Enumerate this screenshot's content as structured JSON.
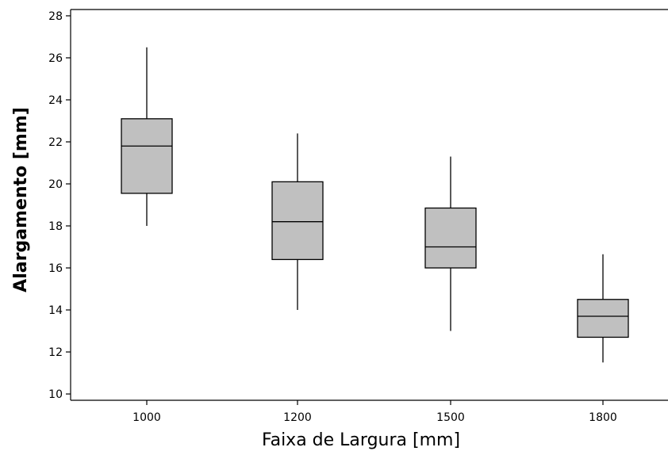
{
  "chart_data": {
    "type": "boxplot",
    "title": "",
    "xlabel": "Faixa de Largura [mm]",
    "ylabel": "Alargamento [mm]",
    "categories": [
      "1000",
      "1200",
      "1500",
      "1800"
    ],
    "boxes": [
      {
        "category": "1000",
        "min": 18.0,
        "q1": 19.55,
        "median": 21.8,
        "q3": 23.1,
        "max": 26.5
      },
      {
        "category": "1200",
        "min": 14.0,
        "q1": 16.4,
        "median": 18.2,
        "q3": 20.1,
        "max": 22.4
      },
      {
        "category": "1500",
        "min": 13.0,
        "q1": 16.0,
        "median": 17.0,
        "q3": 18.85,
        "max": 21.3
      },
      {
        "category": "1800",
        "min": 11.5,
        "q1": 12.7,
        "median": 13.7,
        "q3": 14.5,
        "max": 16.65
      }
    ],
    "yticks": [
      10,
      12,
      14,
      16,
      18,
      20,
      22,
      24,
      26,
      28
    ],
    "ylim": [
      9.7,
      28.3
    ],
    "grid": false,
    "colors": {
      "box_fill": "#c0c0c0",
      "line": "#000000"
    }
  }
}
